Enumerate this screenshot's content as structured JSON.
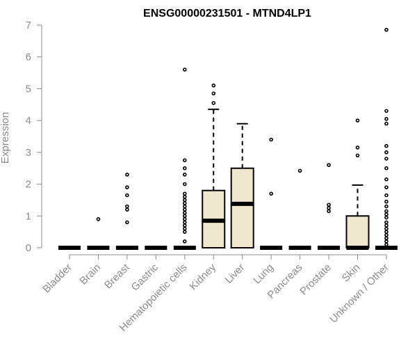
{
  "chart_data": {
    "type": "boxplot",
    "title": "ENSG00000231501 - MTND4LP1",
    "xlabel": "",
    "ylabel": "Expression",
    "ylim": [
      0,
      7
    ],
    "yticks": [
      0,
      1,
      2,
      3,
      4,
      5,
      6,
      7
    ],
    "grid": false,
    "colors": {
      "box_fill": "#efe8cf",
      "box_stroke": "#000000",
      "axis": "#8c8c8c",
      "text": "#8c8c8c",
      "title": "#000000"
    },
    "categories": [
      "Bladder",
      "Brain",
      "Breast",
      "Gastric",
      "Hematopoietic cells",
      "Kidney",
      "Liver",
      "Lung",
      "Pancreas",
      "Prostate",
      "Skin",
      "Unknown / Other"
    ],
    "boxes": [
      {
        "q1": 0,
        "median": 0,
        "q3": 0,
        "whisker_low": 0,
        "whisker_high": 0,
        "outliers": []
      },
      {
        "q1": 0,
        "median": 0,
        "q3": 0,
        "whisker_low": 0,
        "whisker_high": 0,
        "outliers": [
          0.9
        ]
      },
      {
        "q1": 0,
        "median": 0,
        "q3": 0,
        "whisker_low": 0,
        "whisker_high": 0,
        "outliers": [
          0.8,
          1.2,
          1.3,
          1.65,
          1.9,
          2.3
        ]
      },
      {
        "q1": 0,
        "median": 0,
        "q3": 0,
        "whisker_low": 0,
        "whisker_high": 0,
        "outliers": []
      },
      {
        "q1": 0,
        "median": 0,
        "q3": 0,
        "whisker_low": 0,
        "whisker_high": 0,
        "outliers": [
          0.2,
          0.5,
          0.6,
          0.7,
          0.8,
          0.9,
          1.0,
          1.1,
          1.2,
          1.3,
          1.4,
          1.5,
          1.6,
          1.7,
          2.0,
          2.3,
          2.5,
          2.75,
          5.6
        ]
      },
      {
        "q1": 0,
        "median": 0.85,
        "q3": 1.8,
        "whisker_low": 0,
        "whisker_high": 4.35,
        "outliers": [
          4.55,
          4.85,
          5.1
        ]
      },
      {
        "q1": 0,
        "median": 1.38,
        "q3": 2.5,
        "whisker_low": 0,
        "whisker_high": 3.9,
        "outliers": []
      },
      {
        "q1": 0,
        "median": 0,
        "q3": 0,
        "whisker_low": 0,
        "whisker_high": 0,
        "outliers": [
          1.7,
          3.4
        ]
      },
      {
        "q1": 0,
        "median": 0,
        "q3": 0,
        "whisker_low": 0,
        "whisker_high": 0,
        "outliers": [
          2.42
        ]
      },
      {
        "q1": 0,
        "median": 0,
        "q3": 0,
        "whisker_low": 0,
        "whisker_high": 0,
        "outliers": [
          1.15,
          1.25,
          1.35,
          2.6
        ]
      },
      {
        "q1": 0,
        "median": 0,
        "q3": 1.0,
        "whisker_low": 0,
        "whisker_high": 1.97,
        "outliers": [
          2.9,
          3.15,
          4.0
        ]
      },
      {
        "q1": 0,
        "median": 0,
        "q3": 0,
        "whisker_low": 0,
        "whisker_high": 0,
        "outliers": [
          0.1,
          0.2,
          0.3,
          0.4,
          0.5,
          0.6,
          0.7,
          0.8,
          0.95,
          1.05,
          1.15,
          1.3,
          1.45,
          1.65,
          1.9,
          2.15,
          2.5,
          2.8,
          3.0,
          3.2,
          3.9,
          4.05,
          4.3,
          6.85
        ]
      }
    ]
  }
}
